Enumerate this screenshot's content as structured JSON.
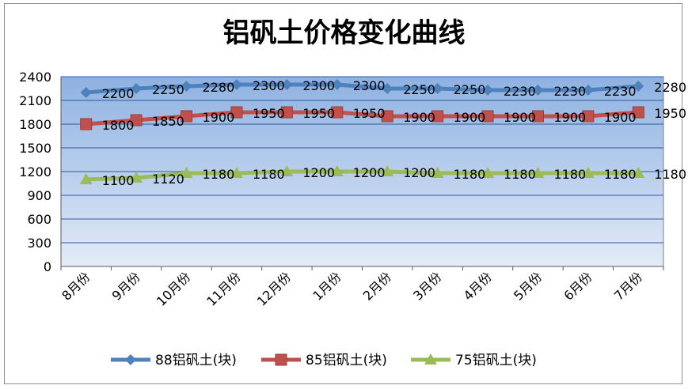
{
  "chart_data": {
    "type": "line",
    "title": "铝矾土价格变化曲线",
    "categories": [
      "8月份",
      "9月份",
      "10月份",
      "11月份",
      "12月份",
      "1月份",
      "2月份",
      "3月份",
      "4月份",
      "5月份",
      "6月份",
      "7月份"
    ],
    "ylim": [
      0,
      2400
    ],
    "yticks": [
      0,
      300,
      600,
      900,
      1200,
      1500,
      1800,
      2100,
      2400
    ],
    "grid": true,
    "legend_position": "bottom",
    "series": [
      {
        "name": "88铝矾土(块)",
        "color": "#4f81bd",
        "marker": "diamond",
        "values": [
          2200,
          2250,
          2280,
          2300,
          2300,
          2300,
          2250,
          2250,
          2230,
          2230,
          2230,
          2280
        ],
        "labels": [
          "2200",
          "2250",
          "2280",
          "2300",
          "2300",
          "2300",
          "2250",
          "2250",
          "2230",
          "2230",
          "2230",
          "2280"
        ]
      },
      {
        "name": "85铝矾土(块)",
        "color": "#c0504d",
        "marker": "square",
        "values": [
          1800,
          1850,
          1900,
          1950,
          1950,
          1950,
          1900,
          1900,
          1900,
          1900,
          1900,
          1950
        ],
        "labels": [
          "1800",
          "1850",
          "1900",
          "1950",
          "1950",
          "1950",
          "1900",
          "1900",
          "1900",
          "1900",
          "1900",
          "1950"
        ]
      },
      {
        "name": "75铝矾土(块)",
        "color": "#9bbb59",
        "marker": "triangle",
        "values": [
          1100,
          1120,
          1180,
          1180,
          1200,
          1200,
          1200,
          1180,
          1180,
          1180,
          1180,
          1180
        ],
        "labels": [
          "1100",
          "1120",
          "1180",
          "1180",
          "1200",
          "1200",
          "1200",
          "1180",
          "1180",
          "1180",
          "1180",
          "1180"
        ]
      }
    ]
  }
}
